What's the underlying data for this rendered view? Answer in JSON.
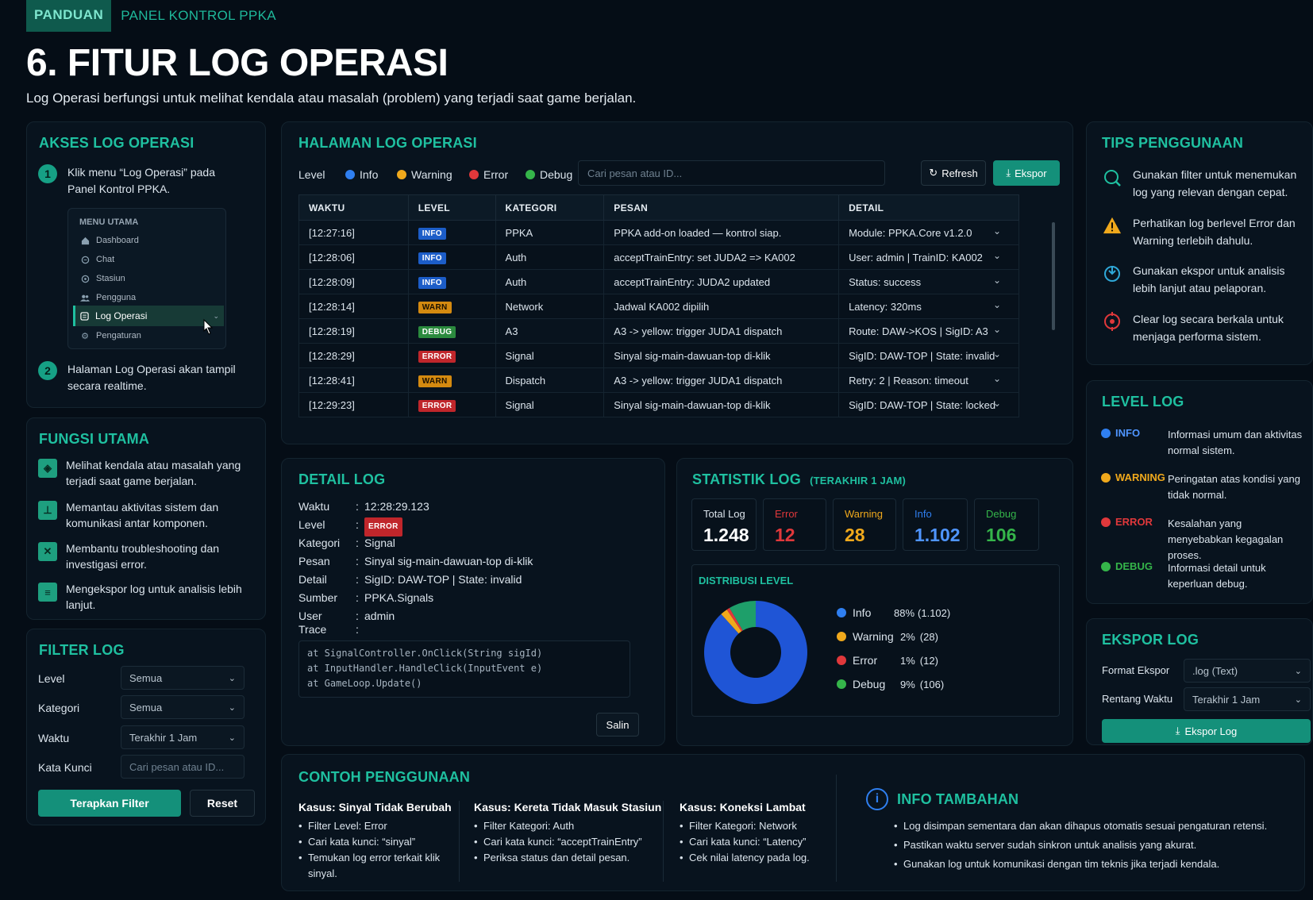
{
  "header": {
    "tag": "PANDUAN",
    "section": "PANEL KONTROL PPKA",
    "title": "6. FITUR LOG OPERASI",
    "subtitle": "Log Operasi berfungsi untuk melihat kendala atau masalah (problem) yang terjadi saat game berjalan."
  },
  "akses": {
    "title": "AKSES LOG OPERASI",
    "step1_num": "1",
    "step1_text": "Klik menu “Log Operasi” pada Panel Kontrol PPKA.",
    "step2_num": "2",
    "step2_text": "Halaman Log Operasi akan tampil secara realtime.",
    "menu": {
      "title": "MENU UTAMA",
      "items": [
        {
          "label": "Dashboard",
          "icon": "home-icon"
        },
        {
          "label": "Chat",
          "icon": "chat-icon"
        },
        {
          "label": "Stasiun",
          "icon": "station-icon"
        },
        {
          "label": "Pengguna",
          "icon": "users-icon"
        },
        {
          "label": "Log Operasi",
          "icon": "log-icon"
        },
        {
          "label": "Pengaturan",
          "icon": "gear-icon"
        }
      ]
    }
  },
  "fungsi": {
    "title": "FUNGSI UTAMA",
    "items": [
      "Melihat kendala atau masalah yang terjadi saat game berjalan.",
      "Memantau aktivitas sistem dan komunikasi antar komponen.",
      "Membantu troubleshooting dan investigasi error.",
      "Mengekspor log untuk analisis lebih lanjut."
    ]
  },
  "filter": {
    "title": "FILTER LOG",
    "level_label": "Level",
    "level_value": "Semua",
    "kategori_label": "Kategori",
    "kategori_value": "Semua",
    "waktu_label": "Waktu",
    "waktu_value": "Terakhir 1 Jam",
    "kata_label": "Kata Kunci",
    "kata_placeholder": "Cari pesan atau ID...",
    "apply": "Terapkan Filter",
    "reset": "Reset"
  },
  "halaman": {
    "title": "HALAMAN LOG OPERASI",
    "level_label": "Level",
    "legend": [
      {
        "label": "Info",
        "color": "#2f7ff0"
      },
      {
        "label": "Warning",
        "color": "#f0a91c"
      },
      {
        "label": "Error",
        "color": "#e0383b"
      },
      {
        "label": "Debug",
        "color": "#35b54a"
      }
    ],
    "search_placeholder": "Cari pesan atau ID...",
    "refresh": "Refresh",
    "export": "Ekspor",
    "columns": [
      "WAKTU",
      "LEVEL",
      "KATEGORI",
      "PESAN",
      "DETAIL"
    ],
    "rows": [
      {
        "time": "[12:27:16]",
        "level": "INFO",
        "cat": "PPKA",
        "msg": "PPKA add-on loaded — kontrol siap.",
        "detail": "Module: PPKA.Core v1.2.0"
      },
      {
        "time": "[12:28:06]",
        "level": "INFO",
        "cat": "Auth",
        "msg": "acceptTrainEntry: set JUDA2 => KA002",
        "detail": "User: admin | TrainID: KA002"
      },
      {
        "time": "[12:28:09]",
        "level": "INFO",
        "cat": "Auth",
        "msg": "acceptTrainEntry: JUDA2 updated",
        "detail": "Status: success"
      },
      {
        "time": "[12:28:14]",
        "level": "WARN",
        "cat": "Network",
        "msg": "Jadwal KA002 dipilih",
        "detail": "Latency: 320ms"
      },
      {
        "time": "[12:28:19]",
        "level": "DEBUG",
        "cat": "A3",
        "msg": "A3 -> yellow: trigger JUDA1 dispatch",
        "detail": "Route: DAW->KOS | SigID: A3"
      },
      {
        "time": "[12:28:29]",
        "level": "ERROR",
        "cat": "Signal",
        "msg": "Sinyal sig-main-dawuan-top di-klik",
        "detail": "SigID: DAW-TOP | State: invalid"
      },
      {
        "time": "[12:28:41]",
        "level": "WARN",
        "cat": "Dispatch",
        "msg": "A3 -> yellow: trigger JUDA1 dispatch",
        "detail": "Retry: 2 | Reason: timeout"
      },
      {
        "time": "[12:29:23]",
        "level": "ERROR",
        "cat": "Signal",
        "msg": "Sinyal sig-main-dawuan-top di-klik",
        "detail": "SigID: DAW-TOP | State: locked"
      }
    ]
  },
  "detail": {
    "title": "DETAIL LOG",
    "waktu_k": "Waktu",
    "waktu_v": "12:28:29.123",
    "level_k": "Level",
    "level_v": "ERROR",
    "kategori_k": "Kategori",
    "kategori_v": "Signal",
    "pesan_k": "Pesan",
    "pesan_v": "Sinyal sig-main-dawuan-top di-klik",
    "detail_k": "Detail",
    "detail_v": "SigID: DAW-TOP | State: invalid",
    "sumber_k": "Sumber",
    "sumber_v": "PPKA.Signals",
    "user_k": "User",
    "user_v": "admin",
    "trace_k": "Trace",
    "sep": ":",
    "trace": [
      "at SignalController.OnClick(String sigId)",
      "at InputHandler.HandleClick(InputEvent e)",
      "at GameLoop.Update()"
    ],
    "copy": "Salin"
  },
  "statistik": {
    "title": "STATISTIK LOG",
    "subtitle": "(TERAKHIR 1 JAM)",
    "cards": [
      {
        "label": "Total Log",
        "value": "1.248",
        "label_color": "#dbe4ec",
        "value_color": "#ffffff"
      },
      {
        "label": "Error",
        "value": "12",
        "label_color": "#e0383b",
        "value_color": "#e0383b"
      },
      {
        "label": "Warning",
        "value": "28",
        "label_color": "#f0a91c",
        "value_color": "#f0a91c"
      },
      {
        "label": "Info",
        "value": "1.102",
        "label_color": "#2f7ff0",
        "value_color": "#4f95ff"
      },
      {
        "label": "Debug",
        "value": "106",
        "label_color": "#35b54a",
        "value_color": "#35b54a"
      }
    ],
    "dist_title": "DISTRIBUSI LEVEL",
    "dist": [
      {
        "label": "Info",
        "pct": "88%",
        "count": "(1.102)",
        "value": 1102,
        "color": "#1f55d6"
      },
      {
        "label": "Warning",
        "pct": "2%",
        "count": "(28)",
        "value": 28,
        "color": "#f0a91c"
      },
      {
        "label": "Error",
        "pct": "1%",
        "count": "(12)",
        "value": 12,
        "color": "#e0383b"
      },
      {
        "label": "Debug",
        "pct": "9%",
        "count": "(106)",
        "value": 106,
        "color": "#1e9f6a"
      }
    ]
  },
  "contoh": {
    "title": "CONTOH PENGGUNAAN",
    "cases": [
      {
        "title": "Kasus: Sinyal Tidak Berubah",
        "items": [
          "Filter Level: Error",
          "Cari kata kunci: “sinyal”",
          "Temukan log error terkait klik sinyal."
        ]
      },
      {
        "title": "Kasus: Kereta Tidak Masuk Stasiun",
        "items": [
          "Filter Kategori: Auth",
          "Cari kata kunci: “acceptTrainEntry”",
          "Periksa status dan detail pesan."
        ]
      },
      {
        "title": "Kasus: Koneksi Lambat",
        "items": [
          "Filter Kategori: Network",
          "Cari kata kunci: “Latency”",
          "Cek nilai latency pada log."
        ]
      }
    ]
  },
  "info": {
    "title": "INFO TAMBAHAN",
    "items": [
      "Log disimpan sementara dan akan dihapus otomatis sesuai pengaturan retensi.",
      "Pastikan waktu server sudah sinkron untuk analisis yang akurat.",
      "Gunakan log untuk komunikasi dengan tim teknis jika terjadi kendala."
    ]
  },
  "tips": {
    "title": "TIPS PENGGUNAAN",
    "items": [
      {
        "text": "Gunakan filter untuk menemukan log yang relevan dengan cepat.",
        "icon": "search-icon"
      },
      {
        "text": "Perhatikan log berlevel Error dan Warning terlebih dahulu.",
        "icon": "warning-icon"
      },
      {
        "text": "Gunakan ekspor untuk analisis lebih lanjut atau pelaporan.",
        "icon": "export-icon"
      },
      {
        "text": "Clear log secara berkala untuk menjaga performa sistem.",
        "icon": "target-icon"
      }
    ]
  },
  "levels": {
    "title": "LEVEL LOG",
    "items": [
      {
        "name": "INFO",
        "color": "#2f7ff0",
        "desc": "Informasi umum dan aktivitas normal sistem."
      },
      {
        "name": "WARNING",
        "color": "#f0a91c",
        "desc": "Peringatan atas kondisi yang tidak normal."
      },
      {
        "name": "ERROR",
        "color": "#e0383b",
        "desc": "Kesalahan yang menyebabkan kegagalan proses."
      },
      {
        "name": "DEBUG",
        "color": "#35b54a",
        "desc": "Informasi detail untuk keperluan debug."
      }
    ]
  },
  "ekspor": {
    "title": "EKSPOR LOG",
    "format_label": "Format Ekspor",
    "format_value": ".log (Text)",
    "rentang_label": "Rentang Waktu",
    "rentang_value": "Terakhir 1 Jam",
    "button": "Ekspor Log"
  }
}
